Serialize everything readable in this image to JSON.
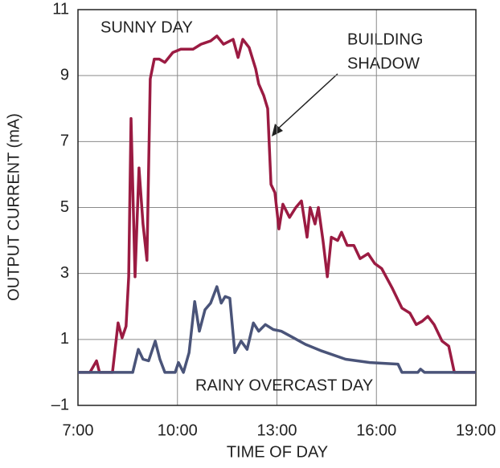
{
  "chart_data": {
    "type": "line",
    "x_label": "TIME OF DAY",
    "y_label": "OUTPUT CURRENT (mA)",
    "annotation": [
      "BUILDING",
      "SHADOW"
    ],
    "xlim": [
      7,
      19
    ],
    "xticks": [
      {
        "value": 7,
        "label": "7:00"
      },
      {
        "value": 10,
        "label": "10:00"
      },
      {
        "value": 13,
        "label": "13:00"
      },
      {
        "value": 16,
        "label": "16:00"
      },
      {
        "value": 19,
        "label": "19:00"
      }
    ],
    "ylim": [
      -1,
      11
    ],
    "yticks": [
      {
        "value": -1,
        "label": "–1"
      },
      1,
      3,
      5,
      7,
      9,
      11
    ],
    "grid": true,
    "series": [
      {
        "name": "SUNNY DAY",
        "color": "#9b1b42",
        "x": [
          7.0,
          7.36,
          7.56,
          7.65,
          8.04,
          8.21,
          8.33,
          8.45,
          8.53,
          8.6,
          8.72,
          8.84,
          8.96,
          9.08,
          9.18,
          9.3,
          9.45,
          9.62,
          9.86,
          10.1,
          10.47,
          10.71,
          11.0,
          11.19,
          11.39,
          11.68,
          11.83,
          11.97,
          12.16,
          12.36,
          12.45,
          12.6,
          12.72,
          12.82,
          12.94,
          13.06,
          13.18,
          13.38,
          13.57,
          13.74,
          13.91,
          14.0,
          14.15,
          14.25,
          14.39,
          14.52,
          14.64,
          14.83,
          14.95,
          15.12,
          15.32,
          15.51,
          15.75,
          15.95,
          16.16,
          16.48,
          16.77,
          17.01,
          17.2,
          17.38,
          17.55,
          17.74,
          17.98,
          18.18,
          18.35,
          19.0
        ],
        "values": [
          0,
          0,
          0.35,
          0,
          0,
          1.5,
          1.05,
          1.4,
          2.9,
          7.7,
          2.9,
          6.2,
          4.5,
          3.4,
          8.9,
          9.5,
          9.5,
          9.4,
          9.7,
          9.8,
          9.8,
          9.95,
          10.05,
          10.2,
          9.95,
          10.1,
          9.55,
          10.1,
          9.85,
          9.2,
          8.75,
          8.4,
          8.0,
          5.7,
          5.45,
          4.35,
          5.1,
          4.7,
          5.0,
          5.2,
          4.1,
          5.0,
          4.5,
          5.0,
          4.0,
          2.9,
          4.1,
          4.0,
          4.25,
          3.85,
          3.85,
          3.45,
          3.6,
          3.3,
          3.15,
          2.55,
          1.95,
          1.8,
          1.45,
          1.55,
          1.7,
          1.45,
          0.95,
          0.8,
          0,
          0
        ]
      },
      {
        "name": "RAINY OVERCAST DAY",
        "color": "#4a5479",
        "x": [
          7.0,
          8.65,
          8.82,
          8.96,
          9.13,
          9.33,
          9.47,
          9.62,
          9.93,
          10.03,
          10.18,
          10.35,
          10.52,
          10.66,
          10.83,
          11.0,
          11.19,
          11.32,
          11.44,
          11.58,
          11.73,
          11.92,
          12.1,
          12.29,
          12.45,
          12.65,
          12.89,
          13.13,
          13.5,
          13.86,
          14.35,
          15.07,
          15.8,
          16.65,
          16.77,
          17.25,
          17.33,
          17.45,
          19.0
        ],
        "values": [
          0,
          0,
          0.7,
          0.4,
          0.35,
          0.95,
          0.4,
          0,
          0,
          0.3,
          0,
          0.6,
          2.15,
          1.25,
          1.9,
          2.1,
          2.6,
          2.1,
          2.3,
          2.25,
          0.6,
          0.95,
          0.7,
          1.5,
          1.25,
          1.45,
          1.3,
          1.25,
          1.05,
          0.85,
          0.65,
          0.4,
          0.3,
          0.25,
          0,
          0,
          0.1,
          0,
          0
        ]
      }
    ]
  }
}
